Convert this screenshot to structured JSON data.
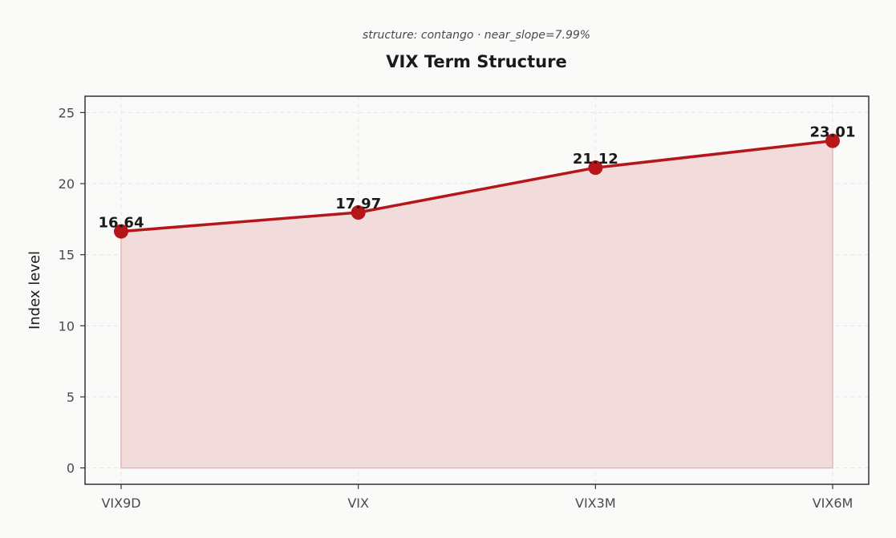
{
  "chart_data": {
    "type": "area",
    "title": "VIX Term Structure",
    "subtitle": "structure: contango · near_slope=7.99%",
    "xlabel": "",
    "ylabel": "Index level",
    "categories": [
      "VIX9D",
      "VIX",
      "VIX3M",
      "VIX6M"
    ],
    "series": [
      {
        "values": [
          16.64,
          17.97,
          21.12,
          23.01
        ]
      }
    ],
    "data_labels": [
      "16.64",
      "17.97",
      "21.12",
      "23.01"
    ],
    "ylim": [
      -1.15,
      26.15
    ],
    "yticks": [
      0,
      5,
      10,
      15,
      20,
      25
    ],
    "grid": true,
    "colors": {
      "line": "#b5161a",
      "marker": "#b5161a",
      "fill": "#f1dcdb",
      "fill_edge": "#e2b8b6",
      "axis": "#333333",
      "background": "#fafaf9"
    }
  }
}
